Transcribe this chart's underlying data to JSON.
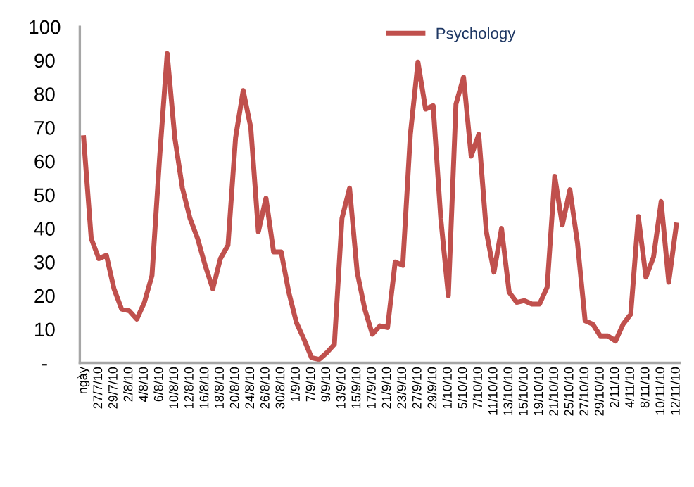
{
  "chart_data": {
    "type": "line",
    "categories": [
      "ngày",
      null,
      "27/7/10",
      null,
      "29/7/10",
      null,
      "2/8/10",
      null,
      "4/8/10",
      null,
      "6/8/10",
      null,
      "10/8/10",
      null,
      "12/8/10",
      null,
      "16/8/10",
      null,
      "18/8/10",
      null,
      "20/8/10",
      null,
      "24/8/10",
      null,
      "26/8/10",
      null,
      "30/8/10",
      null,
      "1/9/10",
      null,
      "7/9/10",
      null,
      "9/9/10",
      null,
      "13/9/10",
      null,
      "15/9/10",
      null,
      "17/9/10",
      null,
      "21/9/10",
      null,
      "23/9/10",
      null,
      "27/9/10",
      null,
      "29/9/10",
      null,
      "1/10/10",
      null,
      "5/10/10",
      null,
      "7/10/10",
      null,
      "11/10/10",
      null,
      "13/10/10",
      null,
      "15/10/10",
      null,
      "19/10/10",
      null,
      "21/10/10",
      null,
      "25/10/10",
      null,
      "27/10/10",
      null,
      "29/10/10",
      null,
      "2/11/10",
      null,
      "4/11/10",
      null,
      "8/11/10",
      null,
      "10/11/10",
      null,
      "12/11/10"
    ],
    "series": [
      {
        "name": "Psychology",
        "color": "#c0504d",
        "values": [
          67,
          37,
          31,
          32,
          22,
          16,
          15.5,
          13,
          18,
          26,
          61,
          92,
          67,
          52,
          43,
          37,
          29,
          22,
          31,
          35,
          67,
          81,
          70,
          39,
          49,
          33,
          33,
          21,
          12,
          7,
          1.5,
          1,
          3,
          5.5,
          43,
          52,
          27,
          16,
          8.5,
          11,
          10.5,
          30,
          29,
          68,
          89.5,
          75.5,
          76.5,
          43,
          20,
          77,
          85,
          61.5,
          68,
          39,
          27,
          40,
          21,
          18,
          18.5,
          17.5,
          17.5,
          22.5,
          55.5,
          41,
          51.5,
          35.5,
          12.5,
          11.5,
          8,
          8,
          6.5,
          11.5,
          14.5,
          43.5,
          25.5,
          31.5,
          48,
          24,
          41
        ]
      }
    ],
    "ylim": [
      0,
      100
    ],
    "yticks": [
      {
        "value": 0,
        "label": "-"
      },
      10,
      20,
      30,
      40,
      50,
      60,
      70,
      80,
      90,
      100
    ],
    "grid": false,
    "legend": "top",
    "marker": "none",
    "line_style": "solid"
  }
}
